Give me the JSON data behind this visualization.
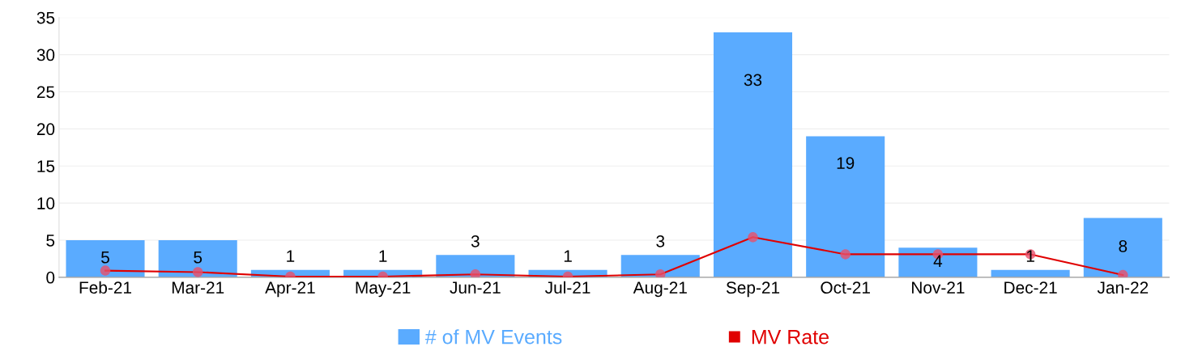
{
  "chart_data": {
    "type": "bar",
    "categories": [
      "Feb-21",
      "Mar-21",
      "Apr-21",
      "May-21",
      "Jun-21",
      "Jul-21",
      "Aug-21",
      "Sep-21",
      "Oct-21",
      "Nov-21",
      "Dec-21",
      "Jan-22"
    ],
    "series": [
      {
        "name": "# of MV Events",
        "color": "#5aabff",
        "values": [
          5,
          5,
          1,
          1,
          3,
          1,
          3,
          33,
          19,
          4,
          1,
          8
        ],
        "data_labels": true
      },
      {
        "name": "MV Rate",
        "type": "line",
        "color": "#e00000",
        "values": [
          0.9,
          0.7,
          0.1,
          0.1,
          0.4,
          0.1,
          0.4,
          5.4,
          3.1,
          3.1,
          3.1,
          0.3
        ],
        "marker": "circle",
        "line_style": "solid"
      }
    ],
    "ylim": [
      0,
      35
    ],
    "yticks": [
      0,
      5,
      10,
      15,
      20,
      25,
      30,
      35
    ],
    "grid": "y",
    "legend": "bottom"
  }
}
